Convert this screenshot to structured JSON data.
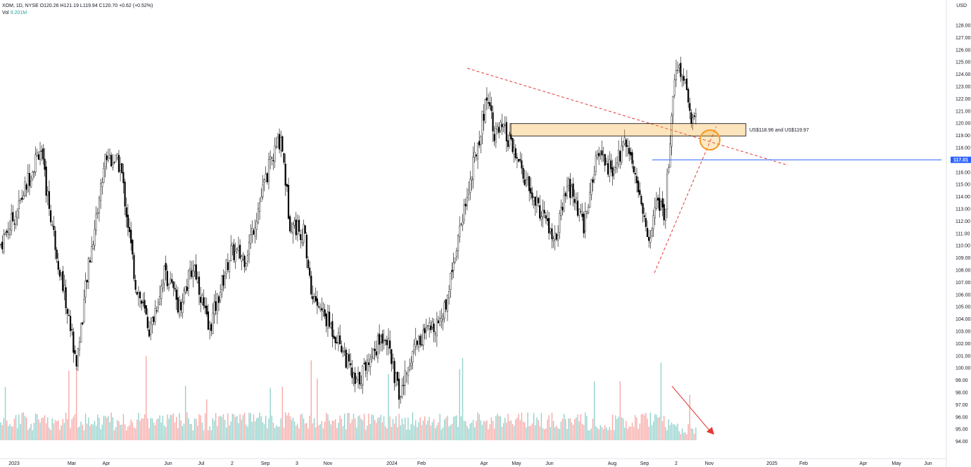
{
  "legend": {
    "symbol": "XOM, 1D, NYSE",
    "open": "O120.26",
    "high": "H121.19",
    "low": "L119.94",
    "close": "C120.70",
    "change": "+0.62 (+0.52%)",
    "vol_label": "Vol",
    "vol_value": "9.201M"
  },
  "currency": "USD",
  "chart_data": {
    "type": "candlestick",
    "instrument": "XOM",
    "timeframe": "1D",
    "y_range": [
      93,
      129
    ],
    "y_ticks": [
      "94.00",
      "95.00",
      "96.00",
      "97.00",
      "98.00",
      "99.00",
      "100.00",
      "101.00",
      "102.00",
      "103.00",
      "104.00",
      "105.00",
      "106.00",
      "107.00",
      "108.00",
      "109.00",
      "110.00",
      "111.00",
      "112.00",
      "113.00",
      "114.00",
      "115.00",
      "116.00",
      "117.00",
      "118.00",
      "119.00",
      "120.00",
      "121.00",
      "122.00",
      "123.00",
      "124.00",
      "125.00",
      "126.00",
      "127.00",
      "128.00"
    ],
    "x_ticks": [
      "2023",
      "Mar",
      "Apr",
      "Jun",
      "Jul",
      "2",
      "Sep",
      "3",
      "Nov",
      "2024",
      "Feb",
      "Apr",
      "May",
      "Jun",
      "Aug",
      "Sep",
      "2",
      "Nov",
      "2025",
      "Feb",
      "Apr",
      "May",
      "Jun"
    ],
    "anchors": [
      {
        "date": "2023-01-03",
        "price": 110.0
      },
      {
        "date": "2023-01-20",
        "price": 113.0
      },
      {
        "date": "2023-02-10",
        "price": 118.0
      },
      {
        "date": "2023-02-24",
        "price": 110.5
      },
      {
        "date": "2023-03-17",
        "price": 100.5
      },
      {
        "date": "2023-03-28",
        "price": 108.0
      },
      {
        "date": "2023-04-14",
        "price": 117.5
      },
      {
        "date": "2023-04-28",
        "price": 116.5
      },
      {
        "date": "2023-05-12",
        "price": 107.0
      },
      {
        "date": "2023-05-26",
        "price": 103.0
      },
      {
        "date": "2023-06-09",
        "price": 108.0
      },
      {
        "date": "2023-06-23",
        "price": 105.0
      },
      {
        "date": "2023-07-07",
        "price": 108.5
      },
      {
        "date": "2023-07-21",
        "price": 103.0
      },
      {
        "date": "2023-08-11",
        "price": 109.5
      },
      {
        "date": "2023-08-25",
        "price": 109.0
      },
      {
        "date": "2023-09-15",
        "price": 116.0
      },
      {
        "date": "2023-09-28",
        "price": 119.0
      },
      {
        "date": "2023-10-06",
        "price": 112.0
      },
      {
        "date": "2023-10-20",
        "price": 111.0
      },
      {
        "date": "2023-10-27",
        "price": 106.0
      },
      {
        "date": "2023-11-10",
        "price": 104.0
      },
      {
        "date": "2023-11-24",
        "price": 102.0
      },
      {
        "date": "2023-12-08",
        "price": 98.5
      },
      {
        "date": "2023-12-22",
        "price": 101.0
      },
      {
        "date": "2024-01-05",
        "price": 103.0
      },
      {
        "date": "2024-01-19",
        "price": 97.5
      },
      {
        "date": "2024-02-02",
        "price": 102.0
      },
      {
        "date": "2024-02-16",
        "price": 103.0
      },
      {
        "date": "2024-03-01",
        "price": 104.5
      },
      {
        "date": "2024-03-15",
        "price": 111.0
      },
      {
        "date": "2024-03-28",
        "price": 116.0
      },
      {
        "date": "2024-04-12",
        "price": 122.5
      },
      {
        "date": "2024-04-19",
        "price": 119.0
      },
      {
        "date": "2024-04-26",
        "price": 119.5
      },
      {
        "date": "2024-05-10",
        "price": 117.0
      },
      {
        "date": "2024-05-24",
        "price": 114.0
      },
      {
        "date": "2024-06-07",
        "price": 112.0
      },
      {
        "date": "2024-06-14",
        "price": 110.0
      },
      {
        "date": "2024-06-28",
        "price": 115.0
      },
      {
        "date": "2024-07-12",
        "price": 111.5
      },
      {
        "date": "2024-07-26",
        "price": 117.5
      },
      {
        "date": "2024-08-09",
        "price": 116.0
      },
      {
        "date": "2024-08-23",
        "price": 119.0
      },
      {
        "date": "2024-09-06",
        "price": 113.0
      },
      {
        "date": "2024-09-13",
        "price": 110.0
      },
      {
        "date": "2024-09-20",
        "price": 114.5
      },
      {
        "date": "2024-09-27",
        "price": 112.0
      },
      {
        "date": "2024-10-04",
        "price": 120.0
      },
      {
        "date": "2024-10-07",
        "price": 123.5
      },
      {
        "date": "2024-10-10",
        "price": 125.0
      },
      {
        "date": "2024-10-17",
        "price": 123.0
      },
      {
        "date": "2024-10-23",
        "price": 120.5
      },
      {
        "date": "2024-10-28",
        "price": 120.7
      }
    ],
    "support_zone": {
      "label": "US$118.96 and US$119.97",
      "low": 118.96,
      "high": 119.97
    },
    "horizontal_line": {
      "price": 117.01,
      "label": "117.01"
    },
    "volume_trend": "down"
  }
}
